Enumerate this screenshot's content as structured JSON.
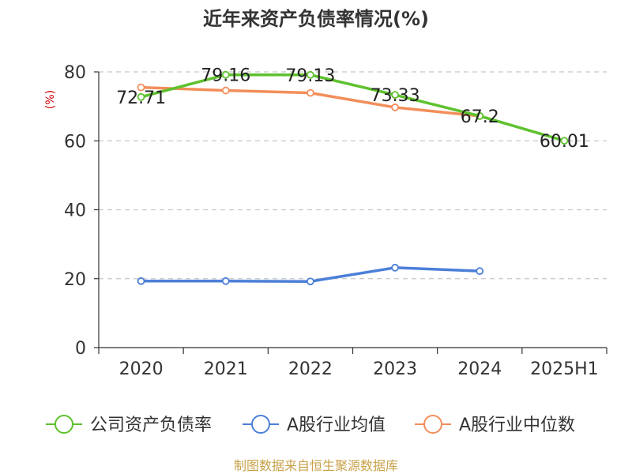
{
  "chart_data": {
    "type": "line",
    "title": "近年来资产负债率情况(%)",
    "ylabel": "(%)",
    "xlabel": "",
    "ylim": [
      0,
      80
    ],
    "yticks": [
      0,
      20,
      40,
      60,
      80
    ],
    "categories": [
      "2020",
      "2021",
      "2022",
      "2023",
      "2024",
      "2025H1"
    ],
    "grid": true,
    "legend_position": "bottom",
    "series": [
      {
        "name": "公司资产负债率",
        "color": "#5ec12e",
        "values": [
          72.71,
          79.16,
          79.13,
          73.33,
          67.2,
          60.01
        ],
        "labels": [
          "72.71",
          "79.16",
          "79.13",
          "73.33",
          "67.2",
          "60.01"
        ]
      },
      {
        "name": "A股行业均值",
        "color": "#4b7fd8",
        "values": [
          19.3,
          19.3,
          19.2,
          23.2,
          22.2,
          null
        ]
      },
      {
        "name": "A股行业中位数",
        "color": "#f28e5a",
        "values": [
          75.5,
          74.6,
          73.9,
          69.7,
          67.2,
          null
        ]
      }
    ],
    "source": "制图数据来自恒生聚源数据库"
  }
}
